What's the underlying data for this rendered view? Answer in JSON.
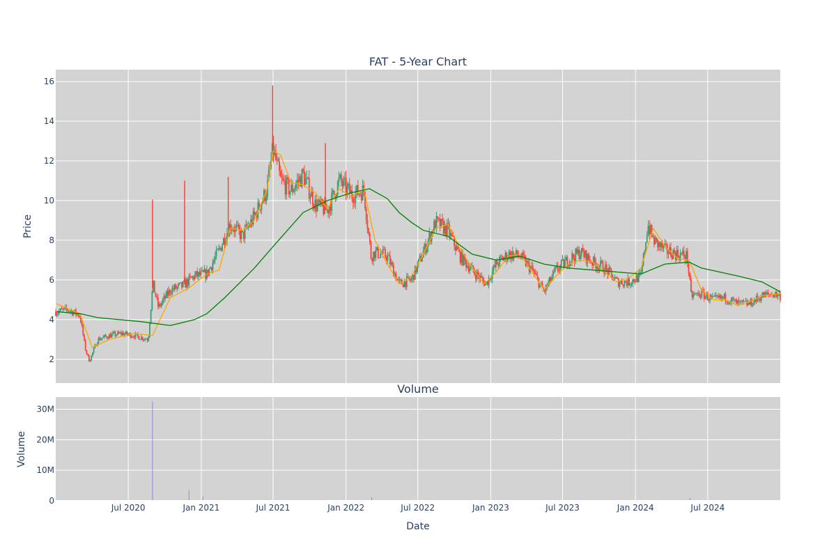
{
  "chart_data": [
    {
      "type": "candlestick",
      "title": "FAT - 5-Year Chart",
      "xlabel": "",
      "ylabel": "Price",
      "ylim": [
        0.8,
        16.6
      ],
      "yticks": [
        2,
        4,
        6,
        8,
        10,
        12,
        14,
        16
      ],
      "x_range": [
        "2019-12-31",
        "2024-12-31"
      ],
      "background": "#d3d3d3",
      "grid": true,
      "colors": {
        "up": "#3d9970",
        "down": "#ff4136",
        "ma_short": "#ffa500",
        "ma_long": "#008000"
      },
      "series": [
        {
          "kind": "close",
          "x": [
            "2020-01-02",
            "2020-02-01",
            "2020-03-01",
            "2020-03-15",
            "2020-03-25",
            "2020-04-15",
            "2020-05-15",
            "2020-06-15",
            "2020-07-15",
            "2020-08-20",
            "2020-09-01",
            "2020-09-15",
            "2020-10-15",
            "2020-11-15",
            "2020-12-15",
            "2021-01-15",
            "2021-02-15",
            "2021-03-15",
            "2021-04-15",
            "2021-05-15",
            "2021-06-15",
            "2021-07-01",
            "2021-07-20",
            "2021-08-15",
            "2021-09-15",
            "2021-10-15",
            "2021-11-15",
            "2021-12-15",
            "2022-01-15",
            "2022-02-15",
            "2022-03-05",
            "2022-03-15",
            "2022-04-15",
            "2022-05-15",
            "2022-06-15",
            "2022-07-15",
            "2022-08-15",
            "2022-09-15",
            "2022-10-15",
            "2022-11-15",
            "2022-12-20",
            "2023-01-15",
            "2023-02-15",
            "2023-03-15",
            "2023-04-15",
            "2023-05-15",
            "2023-06-15",
            "2023-07-15",
            "2023-08-15",
            "2023-09-15",
            "2023-10-15",
            "2023-11-15",
            "2023-12-15",
            "2024-01-15",
            "2024-02-01",
            "2024-02-15",
            "2024-03-15",
            "2024-04-15",
            "2024-05-10",
            "2024-05-20",
            "2024-06-15",
            "2024-07-15",
            "2024-08-15",
            "2024-09-15",
            "2024-10-15",
            "2024-11-15",
            "2024-12-15",
            "2024-12-31"
          ],
          "y": [
            4.4,
            4.5,
            4.2,
            2.5,
            1.9,
            3.0,
            3.2,
            3.3,
            3.2,
            3.0,
            5.8,
            4.6,
            5.5,
            5.7,
            6.2,
            6.3,
            7.5,
            8.8,
            8.2,
            9.2,
            10.5,
            12.6,
            11.0,
            10.5,
            11.3,
            9.8,
            9.5,
            11.0,
            10.3,
            10.5,
            7.2,
            7.4,
            7.2,
            5.8,
            6.0,
            7.4,
            8.9,
            8.5,
            7.2,
            6.5,
            5.8,
            6.8,
            7.3,
            7.2,
            6.5,
            5.4,
            6.5,
            7.0,
            7.4,
            6.9,
            6.6,
            5.9,
            5.9,
            6.2,
            8.8,
            8.0,
            7.5,
            7.3,
            7.2,
            5.2,
            5.3,
            5.0,
            5.1,
            4.8,
            4.8,
            5.2,
            5.3,
            5.2
          ]
        },
        {
          "kind": "moving_average_short",
          "x": [
            "2020-01-02",
            "2020-03-01",
            "2020-04-01",
            "2020-05-15",
            "2020-07-15",
            "2020-08-31",
            "2020-10-15",
            "2020-12-01",
            "2021-01-15",
            "2021-02-15",
            "2021-03-15",
            "2021-04-15",
            "2021-05-15",
            "2021-06-15",
            "2021-07-01",
            "2021-07-20",
            "2021-08-15",
            "2021-09-15",
            "2021-10-15",
            "2021-11-15",
            "2021-12-15",
            "2022-01-15",
            "2022-02-15",
            "2022-03-15",
            "2022-04-15",
            "2022-05-15",
            "2022-06-15",
            "2022-07-15",
            "2022-08-15",
            "2022-09-15",
            "2022-10-15",
            "2022-11-15",
            "2022-12-15",
            "2023-01-15",
            "2023-02-15",
            "2023-03-15",
            "2023-04-15",
            "2023-05-15",
            "2023-06-15",
            "2023-07-15",
            "2023-08-15",
            "2023-09-15",
            "2023-10-15",
            "2023-11-15",
            "2023-12-15",
            "2024-01-15",
            "2024-02-15",
            "2024-03-15",
            "2024-04-15",
            "2024-05-15",
            "2024-06-15",
            "2024-07-15",
            "2024-08-15",
            "2024-09-15",
            "2024-10-15",
            "2024-11-15",
            "2024-12-31"
          ],
          "y": [
            4.8,
            4.3,
            2.6,
            3.0,
            3.3,
            3.2,
            5.1,
            5.6,
            6.3,
            6.5,
            8.6,
            8.5,
            9.0,
            10.5,
            12.5,
            12.3,
            10.9,
            10.8,
            10.4,
            9.6,
            10.6,
            10.2,
            10.6,
            8.0,
            6.8,
            5.8,
            6.2,
            7.3,
            8.6,
            8.8,
            7.6,
            6.6,
            5.8,
            6.4,
            7.2,
            7.3,
            6.4,
            5.5,
            6.2,
            6.8,
            7.0,
            6.9,
            6.4,
            5.9,
            6.1,
            6.6,
            8.6,
            7.7,
            7.1,
            7.0,
            5.5,
            5.0,
            5.0,
            4.7,
            4.9,
            5.2,
            5.3
          ]
        },
        {
          "kind": "moving_average_long",
          "x": [
            "2020-01-02",
            "2020-03-01",
            "2020-04-15",
            "2020-08-01",
            "2020-10-15",
            "2020-12-15",
            "2021-01-15",
            "2021-03-01",
            "2021-05-15",
            "2021-07-15",
            "2021-09-15",
            "2021-11-15",
            "2022-01-15",
            "2022-03-01",
            "2022-04-15",
            "2022-05-15",
            "2022-06-15",
            "2022-07-15",
            "2022-09-15",
            "2022-11-15",
            "2023-01-15",
            "2023-03-15",
            "2023-05-15",
            "2023-07-15",
            "2023-09-15",
            "2023-11-15",
            "2024-01-15",
            "2024-03-15",
            "2024-05-15",
            "2024-06-15",
            "2024-09-15",
            "2024-11-15",
            "2024-12-31"
          ],
          "y": [
            4.4,
            4.3,
            4.1,
            3.9,
            3.7,
            4.0,
            4.3,
            5.1,
            6.6,
            8.0,
            9.4,
            10.0,
            10.4,
            10.6,
            10.1,
            9.4,
            8.9,
            8.5,
            8.2,
            7.3,
            7.0,
            7.2,
            6.8,
            6.6,
            6.5,
            6.4,
            6.3,
            6.8,
            6.9,
            6.6,
            6.2,
            5.9,
            5.4
          ]
        }
      ]
    },
    {
      "type": "bar",
      "title": "Volume",
      "xlabel": "Date",
      "ylabel": "Volume",
      "ylim": [
        0,
        34
      ],
      "yticks": [
        0,
        10,
        20,
        30
      ],
      "ytick_labels": [
        "0",
        "10M",
        "20M",
        "30M"
      ],
      "unit": "M",
      "xticks": [
        "2020-07-01",
        "2021-01-01",
        "2021-07-01",
        "2022-01-01",
        "2022-07-01",
        "2023-01-01",
        "2023-07-01",
        "2024-01-01",
        "2024-07-01"
      ],
      "xtick_labels": [
        "Jul 2020",
        "Jan 2021",
        "Jul 2021",
        "Jan 2022",
        "Jul 2022",
        "Jan 2023",
        "Jul 2023",
        "Jan 2024",
        "Jul 2024"
      ],
      "grid": true,
      "color": "#0000ff",
      "x": [
        "2020-08-31",
        "2020-12-01",
        "2021-01-05",
        "2022-03-07",
        "2024-05-17"
      ],
      "values": [
        32.5,
        3.5,
        1.4,
        1.2,
        0.9
      ]
    }
  ]
}
